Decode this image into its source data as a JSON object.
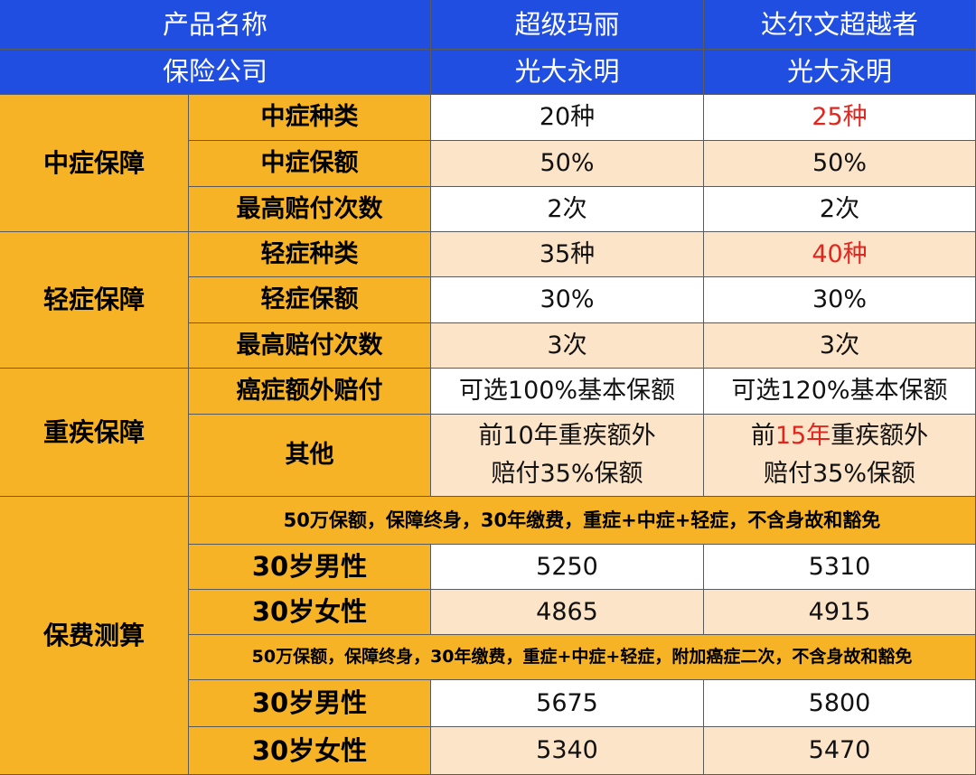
{
  "header": {
    "row1": {
      "label": "产品名称",
      "product_a": "超级玛丽",
      "product_b": "达尔文超越者"
    },
    "row2": {
      "label": "保险公司",
      "product_a": "光大永明",
      "product_b": "光大永明"
    }
  },
  "sections": {
    "moderate": {
      "title": "中症保障",
      "rows": [
        {
          "label": "中症种类",
          "a": "20种",
          "b": "25种"
        },
        {
          "label": "中症保额",
          "a": "50%",
          "b": "50%"
        },
        {
          "label": "最高赔付次数",
          "a": "2次",
          "b": "2次"
        }
      ]
    },
    "mild": {
      "title": "轻症保障",
      "rows": [
        {
          "label": "轻症种类",
          "a": "35种",
          "b": "40种"
        },
        {
          "label": "轻症保额",
          "a": "30%",
          "b": "30%"
        },
        {
          "label": "最高赔付次数",
          "a": "3次",
          "b": "3次"
        }
      ]
    },
    "critical": {
      "title": "重疾保障",
      "cancer": {
        "label": "癌症额外赔付",
        "a": "可选100%基本保额",
        "b": "可选120%基本保额"
      },
      "other": {
        "label": "其他",
        "a_line1": "前10年重疾额外",
        "a_line2": "赔付35%保额",
        "b_pre": "前",
        "b_highlight": "15年",
        "b_post": "重疾额外",
        "b_line2": "赔付35%保额"
      }
    },
    "premium": {
      "title": "保费测算",
      "note1": "50万保额，保障终身，30年缴费，重症+中症+轻症，不含身故和豁免",
      "group1": [
        {
          "label": "30岁男性",
          "a": "5250",
          "b": "5310"
        },
        {
          "label": "30岁女性",
          "a": "4865",
          "b": "4915"
        }
      ],
      "note2": "50万保额，保障终身，30年缴费，重症+中症+轻症，附加癌症二次，不含身故和豁免",
      "group2": [
        {
          "label": "30岁男性",
          "a": "5675",
          "b": "5800"
        },
        {
          "label": "30岁女性",
          "a": "5340",
          "b": "5470"
        }
      ]
    }
  },
  "colors": {
    "header_blue": "#1f4ee0",
    "category_orange": "#f6b325",
    "row_peach": "#fce4c9",
    "highlight_red": "#e0261f"
  }
}
